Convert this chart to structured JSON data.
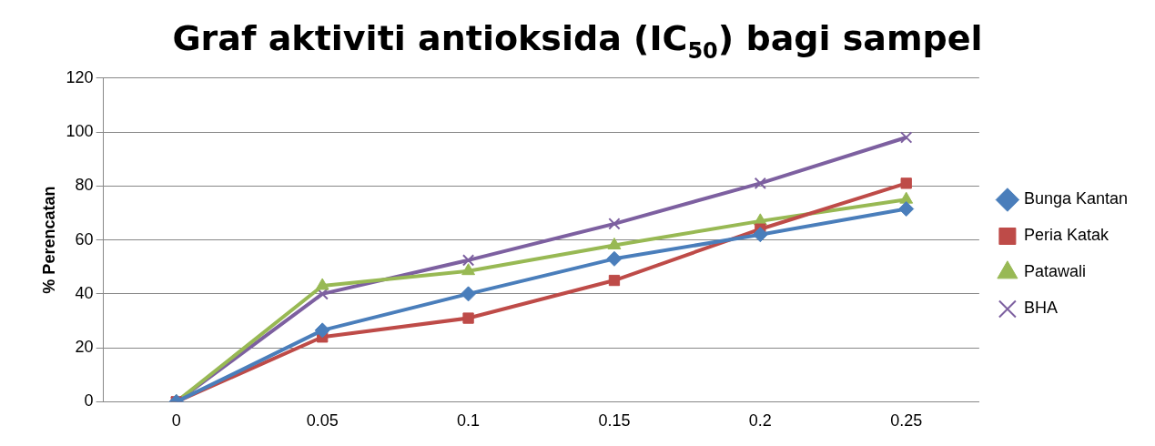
{
  "chart_data": {
    "type": "line",
    "title": "Graf aktiviti antioksida (IC$_{50}$) bagi sampel",
    "ylabel": "% Perencatan",
    "categories": [
      "0",
      "0.05",
      "0.1",
      "0.15",
      "0.2",
      "0.25"
    ],
    "series": [
      {
        "name": "Bunga Kantan",
        "color": "#4a7ebb",
        "marker": "diamond",
        "values": [
          0,
          26.5,
          40,
          53,
          62,
          71.5
        ]
      },
      {
        "name": "Peria Katak",
        "color": "#be4b48",
        "marker": "square",
        "values": [
          0,
          24,
          31,
          45,
          64,
          81
        ]
      },
      {
        "name": "Patawali",
        "color": "#98b954",
        "marker": "triangle",
        "values": [
          0,
          43,
          48.5,
          58,
          67,
          75
        ]
      },
      {
        "name": "BHA",
        "color": "#7d60a0",
        "marker": "cross",
        "values": [
          0,
          40,
          52.5,
          66,
          81,
          98
        ]
      }
    ],
    "ylim": [
      0,
      120
    ],
    "yticks": [
      0,
      20,
      40,
      60,
      80,
      100,
      120
    ],
    "grid": "y",
    "legend": "right",
    "line_style": "solid"
  }
}
